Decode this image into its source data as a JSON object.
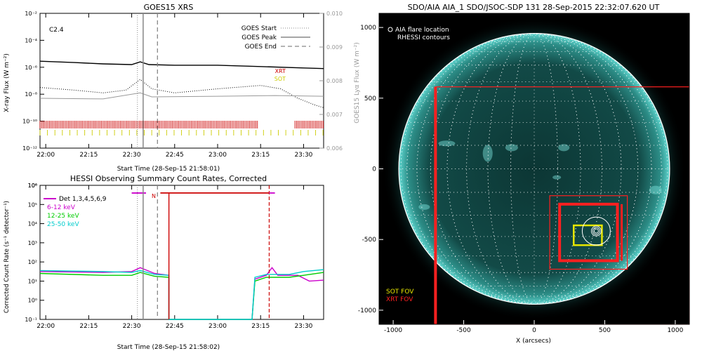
{
  "chart_data": [
    {
      "type": "line",
      "title": "GOES15 XRS",
      "xlabel": "Start Time (28-Sep-15 21:58:01)",
      "ylabel": "X-ray Flux (W m⁻²)",
      "y2label": "GOES15 Lyα Flux (W m⁻²)",
      "class_label": "C2.4",
      "x_ticks": [
        "22:00",
        "22:15",
        "22:30",
        "22:45",
        "23:00",
        "23:15",
        "23:30"
      ],
      "y_ticks": [
        "10⁻²",
        "10⁻⁴",
        "10⁻⁶",
        "10⁻⁸",
        "10⁻¹⁰",
        "10⁻¹²"
      ],
      "y2_ticks": [
        "0.010",
        "0.009",
        "0.008",
        "0.007",
        "0.006"
      ],
      "ylim_log10": [
        -12,
        -2
      ],
      "y2lim": [
        0.006,
        0.01
      ],
      "xlim_min": [
        -2,
        97
      ],
      "legend": [
        {
          "name": "GOES Start",
          "style": "dotted"
        },
        {
          "name": "GOES Peak",
          "style": "solid"
        },
        {
          "name": "GOES End",
          "style": "dashed"
        }
      ],
      "markers": {
        "start_min": 32,
        "peak_min": 34,
        "end_min": 39
      },
      "series": [
        {
          "name": "long",
          "color": "#000000",
          "points": [
            [
              -2,
              -5.55
            ],
            [
              10,
              -5.65
            ],
            [
              20,
              -5.75
            ],
            [
              30,
              -5.8
            ],
            [
              33,
              -5.6
            ],
            [
              36,
              -5.8
            ],
            [
              45,
              -5.85
            ],
            [
              60,
              -5.85
            ],
            [
              75,
              -5.95
            ],
            [
              90,
              -6.05
            ],
            [
              97,
              -6.1
            ]
          ]
        },
        {
          "name": "short",
          "color": "#000000",
          "dash": "1,2",
          "points": [
            [
              -2,
              -7.5
            ],
            [
              10,
              -7.7
            ],
            [
              20,
              -7.9
            ],
            [
              28,
              -7.7
            ],
            [
              33,
              -6.9
            ],
            [
              37,
              -7.6
            ],
            [
              45,
              -7.9
            ],
            [
              60,
              -7.6
            ],
            [
              75,
              -7.35
            ],
            [
              82,
              -7.6
            ],
            [
              88,
              -8.3
            ],
            [
              94,
              -8.8
            ],
            [
              97,
              -9.0
            ]
          ]
        },
        {
          "name": "lyman",
          "color": "#999999",
          "points": [
            [
              -2,
              -8.3
            ],
            [
              20,
              -8.35
            ],
            [
              33,
              -7.9
            ],
            [
              37,
              -8.2
            ],
            [
              60,
              -8.15
            ],
            [
              80,
              -8.1
            ],
            [
              97,
              -8.15
            ]
          ]
        }
      ],
      "instruments": [
        {
          "name": "XRT",
          "color": "#cc0000",
          "spans": [
            [
              -2,
              74
            ],
            [
              87,
              97
            ]
          ]
        },
        {
          "name": "SOT",
          "color": "#cccc00",
          "spans": [
            [
              -2,
              97
            ]
          ]
        }
      ]
    },
    {
      "type": "line",
      "title": "HESSI Observing Summary Count Rates, Corrected",
      "xlabel": "Start Time (28-Sep-15 21:58:02)",
      "ylabel": "Corrected Count Rate (s⁻¹ detector⁻¹)",
      "x_ticks": [
        "22:00",
        "22:15",
        "22:30",
        "22:45",
        "23:00",
        "23:15",
        "23:30"
      ],
      "y_ticks": [
        "10⁸",
        "10⁶",
        "10⁴",
        "10²",
        "10⁰"
      ],
      "y_minor_ticks": [
        "10⁵",
        "10³",
        "10¹",
        "10⁻¹"
      ],
      "ylim_log10": [
        -1,
        6
      ],
      "xlim_min": [
        -2,
        97
      ],
      "legend": [
        {
          "name": "Det 1,3,4,5,6,9",
          "color": "#000000"
        },
        {
          "name": "6-12 keV",
          "color": "#cc00cc"
        },
        {
          "name": "12-25 keV",
          "color": "#00cc00"
        },
        {
          "name": "25-50 keV",
          "color": "#00cccc"
        }
      ],
      "night_label": "N",
      "markers": {
        "start_min": 32,
        "peak_min": 34,
        "end_min": 39
      },
      "night_start_min": 43,
      "night_end_min": 78,
      "attenuator_min": 78,
      "series": [
        {
          "name": "6-12 keV",
          "color": "#cc00cc",
          "points": [
            [
              -2,
              1.5
            ],
            [
              20,
              1.45
            ],
            [
              30,
              1.5
            ],
            [
              33,
              1.7
            ],
            [
              38,
              1.4
            ],
            [
              43,
              1.3
            ],
            [
              43,
              -1
            ],
            [
              72,
              -1
            ],
            [
              73,
              1.1
            ],
            [
              77,
              1.3
            ],
            [
              79,
              1.7
            ],
            [
              81,
              1.3
            ],
            [
              88,
              1.3
            ],
            [
              92,
              1.0
            ],
            [
              97,
              1.05
            ]
          ]
        },
        {
          "name": "12-25 keV",
          "color": "#00cc00",
          "points": [
            [
              -2,
              1.4
            ],
            [
              20,
              1.3
            ],
            [
              30,
              1.3
            ],
            [
              33,
              1.45
            ],
            [
              38,
              1.25
            ],
            [
              43,
              1.2
            ],
            [
              43,
              -1
            ],
            [
              72,
              -1
            ],
            [
              73,
              1.0
            ],
            [
              77,
              1.2
            ],
            [
              85,
              1.2
            ],
            [
              90,
              1.3
            ],
            [
              97,
              1.45
            ]
          ]
        },
        {
          "name": "25-50 keV",
          "color": "#00cccc",
          "points": [
            [
              -2,
              1.55
            ],
            [
              20,
              1.5
            ],
            [
              30,
              1.45
            ],
            [
              33,
              1.55
            ],
            [
              38,
              1.35
            ],
            [
              43,
              1.3
            ],
            [
              43,
              -1
            ],
            [
              72,
              -1
            ],
            [
              73,
              1.2
            ],
            [
              77,
              1.35
            ],
            [
              85,
              1.35
            ],
            [
              90,
              1.5
            ],
            [
              97,
              1.6
            ]
          ]
        },
        {
          "name": "night-bar",
          "color": "#cc0000",
          "points": [
            [
              40,
              5.6
            ],
            [
              78,
              5.6
            ]
          ]
        }
      ]
    },
    {
      "type": "scatter",
      "title": "SDO/AIA AIA_1 SDO/JSOC-SDP 131 28-Sep-2015 22:32:07.620 UT",
      "xlabel": "X (arcsecs)",
      "ylabel": "Y (arcsecs)",
      "x_ticks": [
        "-1000",
        "-500",
        "0",
        "500",
        "1000"
      ],
      "y_ticks": [
        "1000",
        "500",
        "0",
        "-500",
        "-1000"
      ],
      "xlim": [
        -1100,
        1100
      ],
      "ylim": [
        -1100,
        1100
      ],
      "legend_top": [
        "AIA flare location",
        "RHESSI contours"
      ],
      "legend_bottom": [
        {
          "name": "SOT FOV",
          "color": "#e6e600"
        },
        {
          "name": "XRT FOV",
          "color": "#ff2020"
        }
      ],
      "solar_radius_arcsec": 960,
      "flare_location": [
        440,
        -440
      ],
      "fovs": [
        {
          "name": "XRT-large",
          "color": "#ff2020",
          "x": [
            -700,
            1100
          ],
          "y": [
            -1100,
            580
          ]
        },
        {
          "name": "XRT-mid",
          "color": "#ff2020",
          "x": [
            110,
            660
          ],
          "y": [
            -710,
            -190
          ]
        },
        {
          "name": "XRT-small",
          "color": "#ff2020",
          "x": [
            180,
            590
          ],
          "y": [
            -650,
            -250
          ]
        },
        {
          "name": "SOT",
          "color": "#e6e600",
          "x": [
            280,
            480
          ],
          "y": [
            -540,
            -400
          ]
        }
      ]
    }
  ]
}
